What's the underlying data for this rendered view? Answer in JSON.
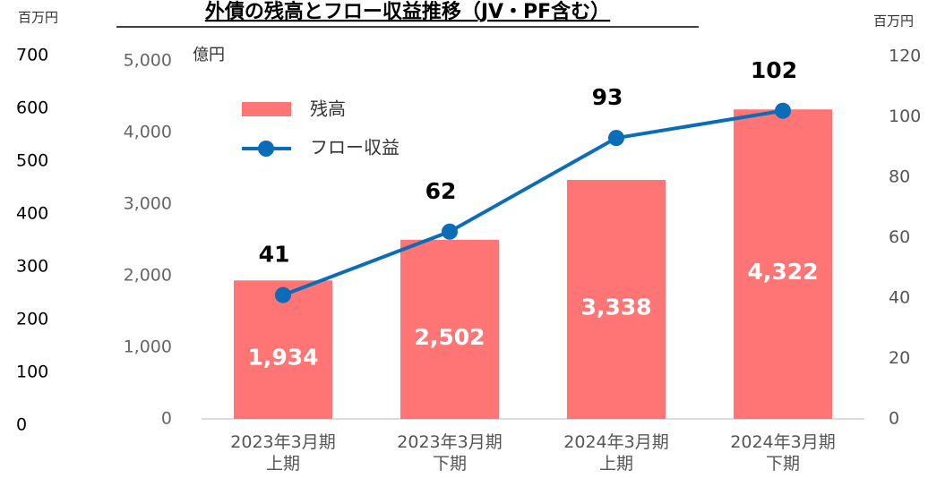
{
  "chart_data": {
    "type": "bar",
    "title": "外債の残高とフロー収益推移（JV・PF含む）",
    "y0_unit": "百万円",
    "y_unit": "億円",
    "y2_unit": "百万円",
    "categories": [
      "2023年3月期\n上期",
      "2023年3月期\n下期",
      "2024年3月期\n上期",
      "2024年3月期\n下期"
    ],
    "series": [
      {
        "name": "残高",
        "type": "bar",
        "color": "#ff7474",
        "values": [
          1934,
          2502,
          3338,
          4322
        ],
        "value_labels": [
          "1,934",
          "2,502",
          "3,338",
          "4,322"
        ]
      },
      {
        "name": "フロー収益",
        "type": "line",
        "axis": "y2",
        "color": "#0b6db7",
        "values": [
          41,
          62,
          93,
          102
        ]
      }
    ],
    "y0lim": [
      0,
      700
    ],
    "y0ticks": [
      0,
      100,
      200,
      300,
      400,
      500,
      600,
      700
    ],
    "ylim": [
      0,
      5000
    ],
    "yticks": [
      0,
      {
        "value": 1000,
        "label": "1,000"
      },
      {
        "value": 2000,
        "label": "2,000"
      },
      {
        "value": 3000,
        "label": "3,000"
      },
      {
        "value": 4000,
        "label": "4,000"
      },
      {
        "value": 5000,
        "label": "5,000"
      }
    ],
    "y2lim": [
      0,
      120
    ],
    "y2ticks": [
      0,
      20,
      40,
      60,
      80,
      100,
      120
    ]
  }
}
